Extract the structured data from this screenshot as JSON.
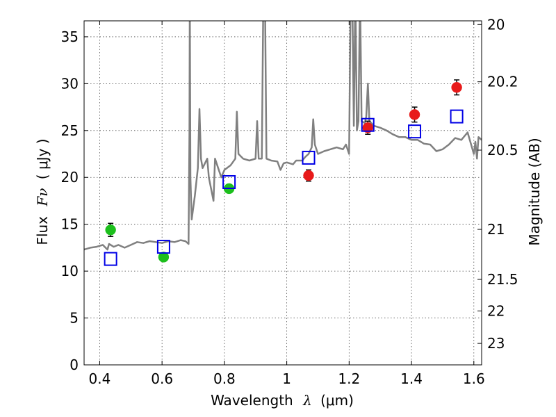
{
  "chart_data": {
    "type": "scatter",
    "xlabel": "Wavelength",
    "xlabel_symbol": "λ",
    "xlabel_unit": "(μm)",
    "ylabel": "Flux",
    "ylabel_symbol": "Fν",
    "ylabel_unit": "( μJy )",
    "y2label": "Magnitude (AB)",
    "xlim": [
      0.35,
      1.625
    ],
    "ylim": [
      0,
      36.7
    ],
    "grid": true,
    "grid_style": "dotted",
    "x_ticks": [
      0.4,
      0.6,
      0.8,
      1.0,
      1.2,
      1.4,
      1.6
    ],
    "x_tick_labels": [
      "0.4",
      "0.6",
      "0.8",
      "1",
      "1.2",
      "1.4",
      "1.6"
    ],
    "y_ticks": [
      0,
      5,
      10,
      15,
      20,
      25,
      30,
      35
    ],
    "y_tick_labels": [
      "0",
      "5",
      "10",
      "15",
      "20",
      "25",
      "30",
      "35"
    ],
    "y2_ticks": [
      20,
      20.2,
      20.5,
      21,
      21.5,
      22,
      23
    ],
    "y2_tick_labels": [
      "20",
      "20.2",
      "20.5",
      "21",
      "21.5",
      "22",
      "23"
    ],
    "series": [
      {
        "type": "line",
        "color": "#808080",
        "points": [
          [
            0.35,
            12.3
          ],
          [
            0.37,
            12.5
          ],
          [
            0.39,
            12.6
          ],
          [
            0.41,
            12.8
          ],
          [
            0.425,
            12.3
          ],
          [
            0.43,
            12.9
          ],
          [
            0.445,
            12.6
          ],
          [
            0.46,
            12.8
          ],
          [
            0.48,
            12.5
          ],
          [
            0.5,
            12.8
          ],
          [
            0.52,
            13.1
          ],
          [
            0.54,
            13.0
          ],
          [
            0.56,
            13.2
          ],
          [
            0.58,
            13.1
          ],
          [
            0.6,
            13.0
          ],
          [
            0.62,
            13.2
          ],
          [
            0.64,
            13.1
          ],
          [
            0.66,
            13.3
          ],
          [
            0.675,
            13.2
          ],
          [
            0.685,
            12.9
          ],
          [
            0.688,
            25
          ],
          [
            0.689,
            40
          ],
          [
            0.691,
            20
          ],
          [
            0.695,
            15.5
          ],
          [
            0.705,
            18
          ],
          [
            0.715,
            21
          ],
          [
            0.72,
            27.3
          ],
          [
            0.725,
            22
          ],
          [
            0.73,
            21
          ],
          [
            0.745,
            22
          ],
          [
            0.75,
            20
          ],
          [
            0.765,
            17.5
          ],
          [
            0.77,
            22
          ],
          [
            0.78,
            21
          ],
          [
            0.79,
            20
          ],
          [
            0.8,
            20.8
          ],
          [
            0.82,
            21.3
          ],
          [
            0.835,
            22
          ],
          [
            0.84,
            27
          ],
          [
            0.845,
            22.5
          ],
          [
            0.86,
            22
          ],
          [
            0.88,
            21.8
          ],
          [
            0.9,
            22
          ],
          [
            0.905,
            26
          ],
          [
            0.91,
            22
          ],
          [
            0.92,
            22
          ],
          [
            0.925,
            40
          ],
          [
            0.93,
            40
          ],
          [
            0.935,
            22
          ],
          [
            0.95,
            21.8
          ],
          [
            0.97,
            21.7
          ],
          [
            0.98,
            20.8
          ],
          [
            0.99,
            21.5
          ],
          [
            1.0,
            21.6
          ],
          [
            1.02,
            21.4
          ],
          [
            1.03,
            21.8
          ],
          [
            1.05,
            21.8
          ],
          [
            1.06,
            22.2
          ],
          [
            1.07,
            22.5
          ],
          [
            1.08,
            23.2
          ],
          [
            1.085,
            26.2
          ],
          [
            1.09,
            23.5
          ],
          [
            1.1,
            22.5
          ],
          [
            1.12,
            22.8
          ],
          [
            1.14,
            23
          ],
          [
            1.16,
            23.2
          ],
          [
            1.18,
            23
          ],
          [
            1.19,
            23.5
          ],
          [
            1.2,
            22.5
          ],
          [
            1.205,
            40
          ],
          [
            1.21,
            40
          ],
          [
            1.215,
            25.5
          ],
          [
            1.22,
            40
          ],
          [
            1.225,
            25
          ],
          [
            1.23,
            26
          ],
          [
            1.235,
            40
          ],
          [
            1.24,
            26
          ],
          [
            1.25,
            25.8
          ],
          [
            1.255,
            26.5
          ],
          [
            1.26,
            30
          ],
          [
            1.265,
            26
          ],
          [
            1.28,
            25.5
          ],
          [
            1.3,
            25.3
          ],
          [
            1.32,
            25
          ],
          [
            1.34,
            24.6
          ],
          [
            1.36,
            24.3
          ],
          [
            1.38,
            24.3
          ],
          [
            1.4,
            24
          ],
          [
            1.42,
            24
          ],
          [
            1.44,
            23.6
          ],
          [
            1.46,
            23.5
          ],
          [
            1.48,
            22.8
          ],
          [
            1.5,
            23
          ],
          [
            1.52,
            23.5
          ],
          [
            1.54,
            24.2
          ],
          [
            1.56,
            24
          ],
          [
            1.58,
            24.8
          ],
          [
            1.6,
            22.5
          ],
          [
            1.605,
            23.8
          ],
          [
            1.61,
            22
          ],
          [
            1.615,
            24.3
          ],
          [
            1.625,
            24
          ]
        ]
      },
      {
        "type": "points",
        "marker": "circle",
        "color": "#1cbf1c",
        "points": [
          {
            "x": 0.435,
            "y": 14.4,
            "err": 0.7
          },
          {
            "x": 0.605,
            "y": 11.5,
            "err": 0.4
          },
          {
            "x": 0.815,
            "y": 18.8,
            "err": 0.4
          }
        ]
      },
      {
        "type": "points",
        "marker": "circle",
        "color": "#e81a1a",
        "points": [
          {
            "x": 1.07,
            "y": 20.2,
            "err": 0.6
          },
          {
            "x": 1.26,
            "y": 25.3,
            "err": 0.7
          },
          {
            "x": 1.41,
            "y": 26.7,
            "err": 0.8
          },
          {
            "x": 1.545,
            "y": 29.6,
            "err": 0.8
          }
        ]
      },
      {
        "type": "points",
        "marker": "open-square",
        "color": "#0000e6",
        "points": [
          {
            "x": 0.435,
            "y": 11.3
          },
          {
            "x": 0.605,
            "y": 12.6
          },
          {
            "x": 0.815,
            "y": 19.5
          },
          {
            "x": 1.07,
            "y": 22.1
          },
          {
            "x": 1.26,
            "y": 25.6
          },
          {
            "x": 1.41,
            "y": 24.9
          },
          {
            "x": 1.545,
            "y": 26.5
          }
        ]
      }
    ]
  }
}
